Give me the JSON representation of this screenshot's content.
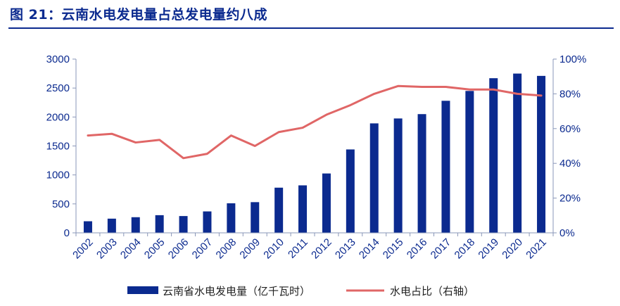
{
  "figure": {
    "title": "图 21：云南水电发电量占总发电量约八成"
  },
  "chart_data": {
    "type": "bar",
    "categories": [
      "2002",
      "2003",
      "2004",
      "2005",
      "2006",
      "2007",
      "2008",
      "2009",
      "2010",
      "2011",
      "2012",
      "2013",
      "2014",
      "2015",
      "2016",
      "2017",
      "2018",
      "2019",
      "2020",
      "2021"
    ],
    "series": [
      {
        "name": "云南省水电发电量（亿千瓦时）",
        "type": "bar",
        "axis": "left",
        "color": "#0b2a8f",
        "values": [
          200,
          245,
          270,
          305,
          290,
          370,
          510,
          530,
          780,
          820,
          1025,
          1440,
          1890,
          1975,
          2050,
          2280,
          2450,
          2670,
          2750,
          2710
        ]
      },
      {
        "name": "水电占比（右轴）",
        "type": "line",
        "axis": "right",
        "color": "#e06666",
        "values": [
          56,
          57,
          52,
          53.5,
          43,
          45.5,
          56,
          50,
          58,
          60.5,
          68,
          73.5,
          80,
          84.5,
          84,
          84,
          82.5,
          82.5,
          80,
          79
        ]
      }
    ],
    "y_left": {
      "ylim": [
        0,
        3000
      ],
      "ticks": [
        "0",
        "500",
        "1000",
        "1500",
        "2000",
        "2500",
        "3000"
      ]
    },
    "y_right": {
      "ylim": [
        0,
        100
      ],
      "ticks": [
        "0%",
        "20%",
        "40%",
        "60%",
        "80%",
        "100%"
      ]
    },
    "grid": false,
    "legend_position": "bottom"
  }
}
